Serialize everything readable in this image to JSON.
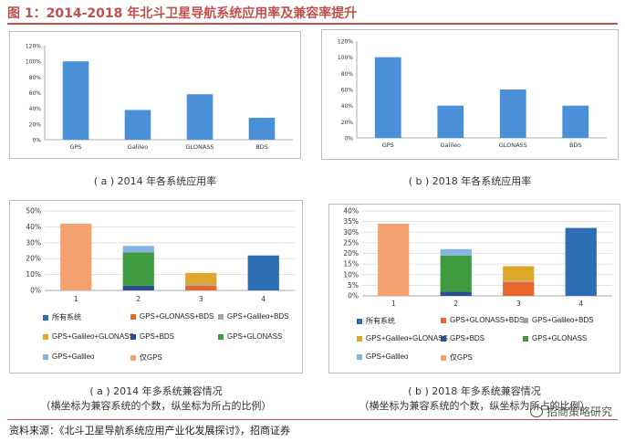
{
  "figure_title": "图 1：2014-2018 年北斗卫星导航系统应用率及兼容率提升",
  "source": "资料来源：《北斗卫星导航系统应用产业化发展探讨》，招商证券",
  "watermark": "招商策略研究",
  "captions": {
    "a_usage": "( a ) 2014 年各系统应用率",
    "b_usage": "( b ) 2018 年各系统应用率",
    "a_compat_line1": "( a ) 2014 年多系统兼容情况",
    "a_compat_line2": "（横坐标为兼容系统的个数，纵坐标为所占的比例）",
    "b_compat_line1": "( b ) 2018 年多系统兼容情况",
    "b_compat_line2": "（横坐标为兼容系统的个数，纵坐标为所占的比例）"
  },
  "colors": {
    "usage_bar": "#4a90d9",
    "title_red": "#c0504d",
    "所有系统": "#2e6fb3",
    "GPS+GLONASS+BDS": "#e6662b",
    "GPS+Galileo+BDS": "#a5a5a5",
    "GPS+Galileo+GLONASS": "#e0a82a",
    "GPS+BDS": "#2c4f91",
    "GPS+GLONASS": "#3f9b3f",
    "GPS+Galileo": "#84b4e0",
    "仅GPS": "#f4a170"
  },
  "legend": [
    "所有系统",
    "GPS+GLONASS+BDS",
    "GPS+Galileo+BDS",
    "GPS+Galileo+GLONASS",
    "GPS+BDS",
    "GPS+GLONASS",
    "GPS+Galileo",
    "仅GPS"
  ],
  "chart_data": [
    {
      "type": "bar",
      "categories": [
        "GPS",
        "Galileo",
        "GLONASS",
        "BDS"
      ],
      "values": [
        100,
        38,
        58,
        28
      ],
      "ylim": [
        0,
        120
      ],
      "yticks": [
        "0%",
        "20%",
        "40%",
        "60%",
        "80%",
        "100%",
        "120%"
      ],
      "grid": false
    },
    {
      "type": "bar",
      "categories": [
        "GPS",
        "Galileo",
        "GLONASS",
        "BDS"
      ],
      "values": [
        100,
        40,
        60,
        40
      ],
      "ylim": [
        0,
        120
      ],
      "yticks": [
        "0%",
        "20%",
        "40%",
        "60%",
        "80%",
        "100%",
        "120%"
      ],
      "grid": false
    },
    {
      "type": "bar",
      "stacked": true,
      "categories": [
        "1",
        "2",
        "3",
        "4"
      ],
      "ylim": [
        0,
        50
      ],
      "yticks": [
        "0%",
        "10%",
        "20%",
        "30%",
        "40%",
        "50%"
      ],
      "grid": true,
      "series": [
        {
          "name": "仅GPS",
          "values": [
            42,
            0,
            0,
            0
          ]
        },
        {
          "name": "GPS+BDS",
          "values": [
            0,
            3,
            0,
            0
          ]
        },
        {
          "name": "GPS+GLONASS",
          "values": [
            0,
            21,
            0,
            0
          ]
        },
        {
          "name": "GPS+Galileo",
          "values": [
            0,
            4,
            0,
            0
          ]
        },
        {
          "name": "GPS+GLONASS+BDS",
          "values": [
            0,
            0,
            3,
            0
          ]
        },
        {
          "name": "GPS+Galileo+BDS",
          "values": [
            0,
            0,
            1,
            0
          ]
        },
        {
          "name": "GPS+Galileo+GLONASS",
          "values": [
            0,
            0,
            7,
            0
          ]
        },
        {
          "name": "所有系统",
          "values": [
            0,
            0,
            0,
            22
          ]
        }
      ]
    },
    {
      "type": "bar",
      "stacked": true,
      "categories": [
        "1",
        "2",
        "3",
        "4"
      ],
      "ylim": [
        0,
        40
      ],
      "yticks": [
        "0%",
        "5%",
        "10%",
        "15%",
        "20%",
        "25%",
        "30%",
        "35%",
        "40%"
      ],
      "grid": true,
      "series": [
        {
          "name": "仅GPS",
          "values": [
            34,
            0,
            0,
            0
          ]
        },
        {
          "name": "GPS+BDS",
          "values": [
            0,
            2,
            0,
            0
          ]
        },
        {
          "name": "GPS+GLONASS",
          "values": [
            0,
            17,
            0,
            0
          ]
        },
        {
          "name": "GPS+Galileo",
          "values": [
            0,
            3,
            0,
            0
          ]
        },
        {
          "name": "GPS+GLONASS+BDS",
          "values": [
            0,
            0,
            6.5,
            0
          ]
        },
        {
          "name": "GPS+Galileo+BDS",
          "values": [
            0,
            0,
            0.5,
            0
          ]
        },
        {
          "name": "GPS+Galileo+GLONASS",
          "values": [
            0,
            0,
            7,
            0
          ]
        },
        {
          "name": "所有系统",
          "values": [
            0,
            0,
            0,
            32
          ]
        }
      ]
    }
  ]
}
